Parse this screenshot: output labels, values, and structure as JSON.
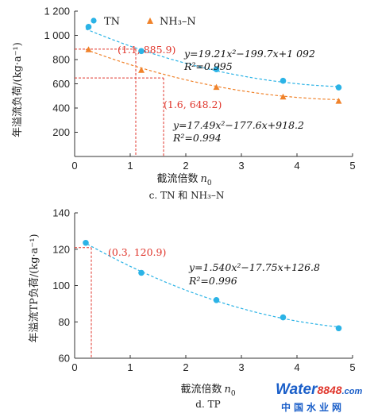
{
  "chart_data": [
    {
      "type": "scatter",
      "caption": "c. TN 和 NH₃–N",
      "xlabel": "截流倍数",
      "xlabel_sub": "n",
      "xlabel_subscript": "0",
      "ylabel": "年溢流负荷/(kg·a⁻¹)",
      "xlim": [
        0,
        5
      ],
      "ylim": [
        0,
        1200
      ],
      "xticks": [
        0,
        1,
        2,
        3,
        4,
        5
      ],
      "yticks": [
        200,
        400,
        600,
        800,
        1000,
        1200
      ],
      "ytick_labels": [
        "200",
        "400",
        "600",
        "800",
        "1 000",
        "1 200"
      ],
      "legend_position": "top-left",
      "series": [
        {
          "name": "TN",
          "marker": "circle",
          "color": "#2bb3e6",
          "x": [
            0.25,
            1.2,
            2.55,
            3.75,
            4.75
          ],
          "y": [
            1070,
            870,
            720,
            625,
            570
          ],
          "fit": {
            "a": 19.21,
            "b": -199.7,
            "c": 1092
          },
          "equation": "y=19.21x²−199.7x+1 092",
          "r2": "R²=0.995",
          "annotation": {
            "x": 1.1,
            "y": 885.9,
            "label": "(1.1, 885.9)"
          }
        },
        {
          "name": "NH₃–N",
          "marker": "triangle",
          "color": "#f0822a",
          "x": [
            0.25,
            1.2,
            2.55,
            3.75,
            4.75
          ],
          "y": [
            880,
            710,
            570,
            490,
            455
          ],
          "fit": {
            "a": 17.49,
            "b": -177.6,
            "c": 918.2
          },
          "equation": "y=17.49x²−177.6x+918.2",
          "r2": "R²=0.994",
          "annotation": {
            "x": 1.6,
            "y": 648.2,
            "label": "(1.6, 648.2)"
          }
        }
      ]
    },
    {
      "type": "scatter",
      "caption": "d. TP",
      "xlabel": "截流倍数",
      "xlabel_sub": "n",
      "xlabel_subscript": "0",
      "ylabel": "年溢流TP负荷/(kg·a⁻¹)",
      "xlim": [
        0,
        5
      ],
      "ylim": [
        60,
        140
      ],
      "xticks": [
        0,
        1,
        2,
        3,
        4,
        5
      ],
      "yticks": [
        60,
        80,
        100,
        120,
        140
      ],
      "ytick_labels": [
        "60",
        "80",
        "100",
        "120",
        "140"
      ],
      "series": [
        {
          "marker": "circle",
          "color": "#2bb3e6",
          "x": [
            0.2,
            1.2,
            2.55,
            3.75,
            4.75
          ],
          "y": [
            123.5,
            107,
            92,
            82.5,
            76.5
          ],
          "fit": {
            "a": 1.54,
            "b": -17.75,
            "c": 126.8
          },
          "equation": "y=1.540x²−17.75x+126.8",
          "r2": "R²=0.996",
          "annotation": {
            "x": 0.3,
            "y": 120.9,
            "label": "(0.3, 120.9)"
          }
        }
      ]
    }
  ],
  "watermark": {
    "part1": "Water",
    "part2": "8848",
    "part3": ".com",
    "subtitle": "中国水业网",
    "color_blue": "#1b5fc9",
    "color_red": "#e0352b"
  }
}
